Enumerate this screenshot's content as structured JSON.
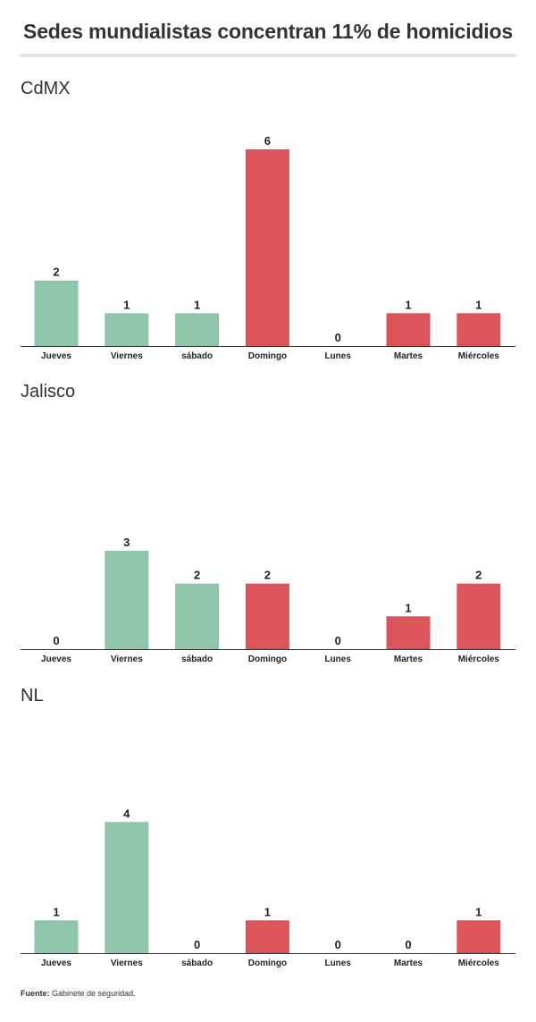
{
  "title": "Sedes mundialistas concentran 11% de homicidios",
  "source": {
    "label": "Fuente:",
    "text": "Gabinete de seguridad."
  },
  "colors": {
    "green": "#8fc5a9",
    "red": "#db545a",
    "axis": "#333333",
    "text": "#222222"
  },
  "chart_data": [
    {
      "type": "bar",
      "title": "CdMX",
      "categories": [
        "Jueves",
        "Viernes",
        "sábado",
        "Domingo",
        "Lunes",
        "Martes",
        "Miércoles"
      ],
      "values": [
        2,
        1,
        1,
        6,
        0,
        1,
        1
      ],
      "bar_colors": [
        "green",
        "green",
        "green",
        "red",
        "red",
        "red",
        "red"
      ],
      "ylim": [
        0,
        6
      ]
    },
    {
      "type": "bar",
      "title": "Jalisco",
      "categories": [
        "Jueves",
        "Viernes",
        "sábado",
        "Domingo",
        "Lunes",
        "Martes",
        "Miércoles"
      ],
      "values": [
        0,
        3,
        2,
        2,
        0,
        1,
        2
      ],
      "bar_colors": [
        "green",
        "green",
        "green",
        "red",
        "red",
        "red",
        "red"
      ],
      "ylim": [
        0,
        6
      ]
    },
    {
      "type": "bar",
      "title": "NL",
      "categories": [
        "Jueves",
        "Viernes",
        "sábado",
        "Domingo",
        "Lunes",
        "Martes",
        "Miércoles"
      ],
      "values": [
        1,
        4,
        0,
        1,
        0,
        0,
        1
      ],
      "bar_colors": [
        "green",
        "green",
        "green",
        "red",
        "red",
        "red",
        "red"
      ],
      "ylim": [
        0,
        6
      ]
    }
  ]
}
